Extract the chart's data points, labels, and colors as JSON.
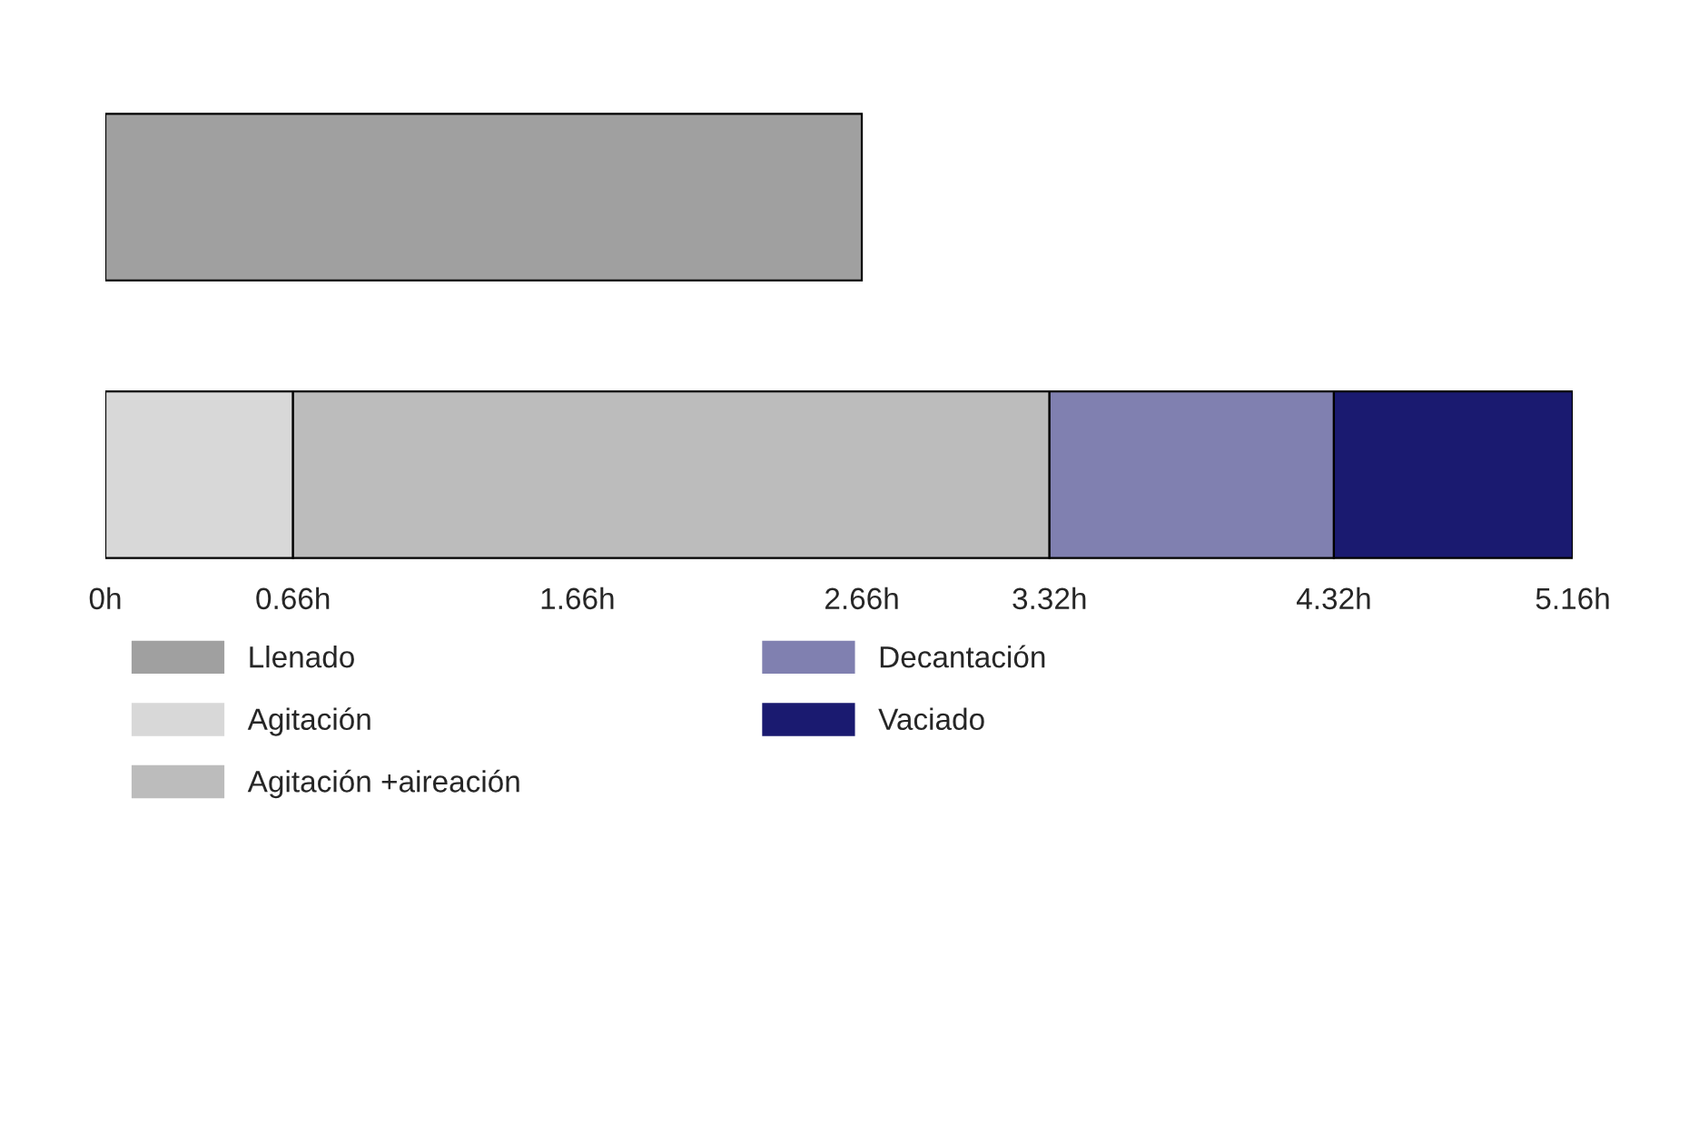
{
  "chart_data": {
    "type": "bar",
    "orientation": "horizontal",
    "stacked": true,
    "categories": [
      null,
      null
    ],
    "series": [
      {
        "name": "Llenado",
        "color": "#a0a0a0",
        "values": [
          2.66,
          null
        ]
      },
      {
        "name": "Agitación",
        "color": "#d8d8d8",
        "values": [
          null,
          0.66
        ]
      },
      {
        "name": "Agitación +aireación",
        "color": "#bcbcbc",
        "values": [
          null,
          2.66
        ]
      },
      {
        "name": "Decantación",
        "color": "#8080b0",
        "values": [
          null,
          1.0
        ]
      },
      {
        "name": "Vaciado",
        "color": "#1a1a70",
        "values": [
          null,
          0.84
        ]
      }
    ],
    "xlim": [
      0,
      5.16
    ],
    "xticks": [
      {
        "value": 0,
        "label": "0h"
      },
      {
        "value": 0.66,
        "label": "0.66h"
      },
      {
        "value": 1.66,
        "label": "1.66h"
      },
      {
        "value": 2.66,
        "label": "2.66h"
      },
      {
        "value": 3.32,
        "label": "3.32h"
      },
      {
        "value": 4.32,
        "label": "4.32h"
      },
      {
        "value": 5.16,
        "label": "5.16h"
      }
    ],
    "tick_labels": "x",
    "legend": "bottom",
    "grid": false
  }
}
